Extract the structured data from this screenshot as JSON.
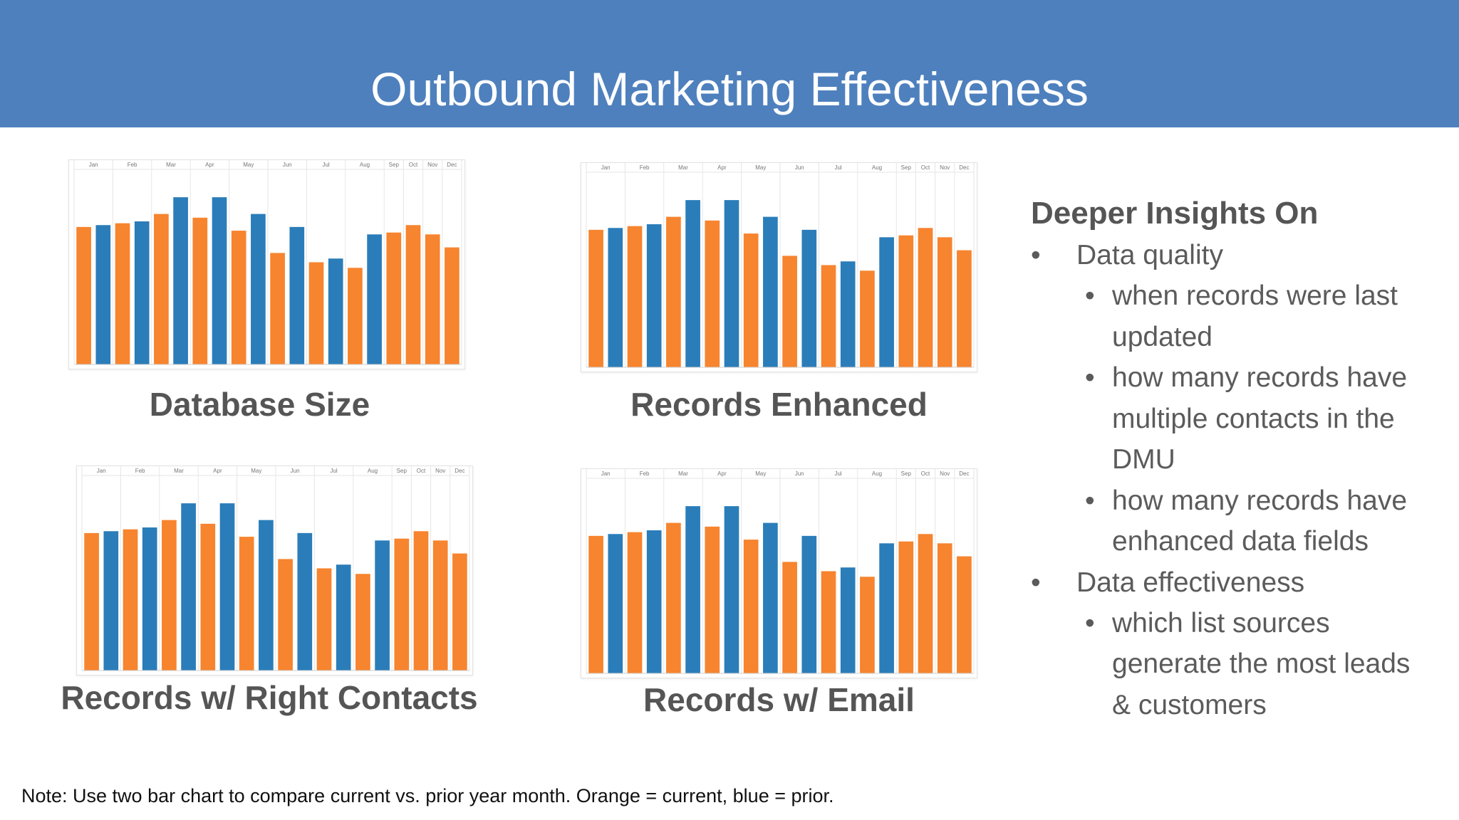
{
  "header": {
    "title": "Outbound Marketing Effectiveness"
  },
  "colors": {
    "header_bg": "#4e80bd",
    "current": "#f7842e",
    "prior": "#2a7db9"
  },
  "months": [
    "Jan",
    "Feb",
    "Mar",
    "Apr",
    "May",
    "Jun",
    "Jul",
    "Aug",
    "Sep",
    "Oct",
    "Nov",
    "Dec"
  ],
  "chart_data": [
    {
      "type": "bar",
      "title": "Database Size",
      "categories": [
        "Jan",
        "Feb",
        "Mar",
        "Apr",
        "May",
        "Jun",
        "Jul",
        "Aug",
        "Sep",
        "Oct",
        "Nov",
        "Dec"
      ],
      "series": [
        {
          "name": "current",
          "color": "#f7842e",
          "values": [
            74,
            76,
            81,
            79,
            72,
            60,
            55,
            52,
            71,
            75,
            70,
            63
          ]
        },
        {
          "name": "prior",
          "color": "#2a7db9",
          "values": [
            75,
            77,
            90,
            90,
            81,
            74,
            57,
            70,
            null,
            null,
            null,
            null
          ]
        }
      ],
      "ylim": [
        0,
        100
      ]
    },
    {
      "type": "bar",
      "title": "Records Enhanced",
      "categories": [
        "Jan",
        "Feb",
        "Mar",
        "Apr",
        "May",
        "Jun",
        "Jul",
        "Aug",
        "Sep",
        "Oct",
        "Nov",
        "Dec"
      ],
      "series": [
        {
          "name": "current",
          "color": "#f7842e",
          "values": [
            74,
            76,
            81,
            79,
            72,
            60,
            55,
            52,
            71,
            75,
            70,
            63
          ]
        },
        {
          "name": "prior",
          "color": "#2a7db9",
          "values": [
            75,
            77,
            90,
            90,
            81,
            74,
            57,
            70,
            null,
            null,
            null,
            null
          ]
        }
      ],
      "ylim": [
        0,
        100
      ]
    },
    {
      "type": "bar",
      "title": "Records w/ Right Contacts",
      "categories": [
        "Jan",
        "Feb",
        "Mar",
        "Apr",
        "May",
        "Jun",
        "Jul",
        "Aug",
        "Sep",
        "Oct",
        "Nov",
        "Dec"
      ],
      "series": [
        {
          "name": "current",
          "color": "#f7842e",
          "values": [
            74,
            76,
            81,
            79,
            72,
            60,
            55,
            52,
            71,
            75,
            70,
            63
          ]
        },
        {
          "name": "prior",
          "color": "#2a7db9",
          "values": [
            75,
            77,
            90,
            90,
            81,
            74,
            57,
            70,
            null,
            null,
            null,
            null
          ]
        }
      ],
      "ylim": [
        0,
        100
      ]
    },
    {
      "type": "bar",
      "title": "Records w/ Email",
      "categories": [
        "Jan",
        "Feb",
        "Mar",
        "Apr",
        "May",
        "Jun",
        "Jul",
        "Aug",
        "Sep",
        "Oct",
        "Nov",
        "Dec"
      ],
      "series": [
        {
          "name": "current",
          "color": "#f7842e",
          "values": [
            74,
            76,
            81,
            79,
            72,
            60,
            55,
            52,
            71,
            75,
            70,
            63
          ]
        },
        {
          "name": "prior",
          "color": "#2a7db9",
          "values": [
            75,
            77,
            90,
            90,
            81,
            74,
            57,
            70,
            null,
            null,
            null,
            null
          ]
        }
      ],
      "ylim": [
        0,
        100
      ]
    }
  ],
  "insights": {
    "title": "Deeper Insights On",
    "bullet": "•",
    "sections": [
      {
        "label": "Data quality",
        "items": [
          {
            "lines": [
              "when records were last",
              "updated"
            ]
          },
          {
            "lines": [
              "how many records have",
              "multiple contacts in the",
              "DMU"
            ]
          },
          {
            "lines": [
              "how many records have",
              "enhanced data fields"
            ]
          }
        ]
      },
      {
        "label": "Data effectiveness",
        "items": [
          {
            "lines": [
              "which list sources",
              "generate the most leads",
              "& customers"
            ]
          }
        ]
      }
    ]
  },
  "note": "Note:  Use two bar chart to compare current vs. prior year month. Orange = current, blue = prior."
}
